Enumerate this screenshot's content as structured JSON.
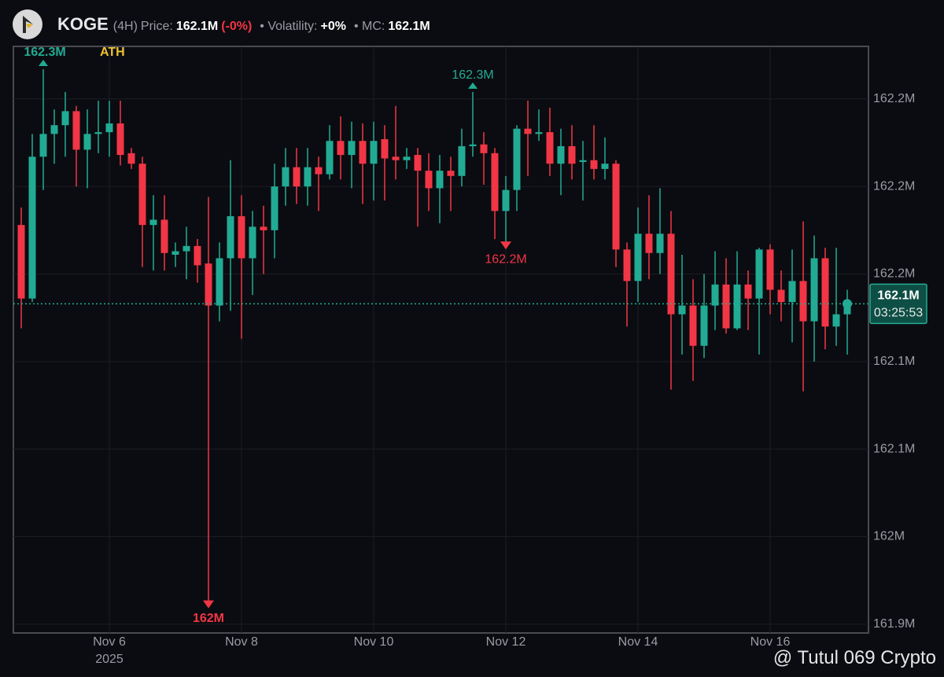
{
  "header": {
    "symbol": "KOGE",
    "interval": "(4H)",
    "price_label": "Price:",
    "price": "162.1M",
    "change": "(-0%)",
    "volatility_label": "• Volatility:",
    "volatility": "+0%",
    "mc_label": "• MC:",
    "mc": "162.1M"
  },
  "chart_data": {
    "type": "candlestick",
    "categories": [
      null,
      null,
      null,
      null,
      null,
      null,
      null,
      null,
      "Nov 6",
      null,
      null,
      null,
      null,
      null,
      null,
      null,
      null,
      null,
      null,
      null,
      "Nov 8",
      null,
      null,
      null,
      null,
      null,
      null,
      null,
      null,
      null,
      null,
      null,
      "Nov 10",
      null,
      null,
      null,
      null,
      null,
      null,
      null,
      null,
      null,
      null,
      null,
      "Nov 12",
      null,
      null,
      null,
      null,
      null,
      null,
      null,
      null,
      null,
      null,
      null,
      "Nov 14",
      null,
      null,
      null,
      null,
      null,
      null,
      null,
      null,
      null,
      null,
      null,
      "Nov 16",
      null,
      null,
      null,
      null,
      null,
      null,
      null
    ],
    "year_label": "2025",
    "open": [
      162.178,
      162.136,
      162.217,
      162.23,
      162.235,
      162.243,
      162.221,
      162.23,
      162.231,
      162.236,
      162.219,
      162.213,
      162.178,
      162.181,
      162.161,
      162.163,
      162.166,
      162.156,
      162.132,
      162.159,
      162.183,
      162.159,
      162.177,
      162.175,
      162.2,
      162.211,
      162.2,
      162.211,
      162.207,
      162.226,
      162.218,
      162.226,
      162.213,
      162.227,
      162.217,
      162.215,
      162.218,
      162.209,
      162.199,
      162.209,
      162.206,
      162.223,
      162.224,
      162.219,
      162.186,
      162.198,
      162.233,
      162.23,
      162.231,
      162.213,
      162.223,
      162.214,
      162.215,
      162.21,
      162.213,
      162.164,
      162.146,
      162.173,
      162.162,
      162.173,
      162.127,
      162.132,
      162.109,
      162.132,
      162.144,
      162.119,
      162.144,
      162.136,
      162.164,
      162.141,
      162.134,
      162.146,
      162.123,
      162.159,
      162.12,
      162.127
    ],
    "high": [
      162.188,
      162.23,
      162.267,
      162.244,
      162.254,
      162.246,
      162.244,
      162.249,
      162.249,
      162.249,
      162.222,
      162.217,
      162.195,
      162.195,
      162.168,
      162.177,
      162.17,
      162.194,
      162.168,
      162.215,
      162.195,
      162.186,
      162.189,
      162.213,
      162.222,
      162.222,
      162.222,
      162.217,
      162.235,
      162.24,
      162.237,
      162.236,
      162.237,
      162.235,
      162.246,
      162.222,
      162.222,
      162.219,
      162.218,
      162.217,
      162.233,
      162.254,
      162.231,
      162.222,
      162.206,
      162.235,
      162.249,
      162.244,
      162.245,
      162.233,
      162.235,
      162.226,
      162.235,
      162.228,
      162.215,
      162.168,
      162.188,
      162.195,
      162.199,
      162.186,
      162.161,
      162.147,
      162.15,
      162.163,
      162.159,
      162.163,
      162.152,
      162.165,
      162.167,
      162.152,
      162.164,
      162.18,
      162.172,
      162.165,
      162.165,
      162.141
    ],
    "low": [
      162.119,
      162.134,
      162.198,
      162.213,
      162.217,
      162.2,
      162.199,
      162.219,
      162.217,
      162.212,
      162.21,
      162.154,
      162.152,
      162.152,
      162.154,
      162.147,
      162.145,
      161.96,
      162.123,
      162.129,
      162.113,
      162.138,
      162.15,
      162.159,
      162.189,
      162.19,
      162.189,
      162.186,
      162.204,
      162.204,
      162.199,
      162.19,
      162.192,
      162.192,
      162.204,
      162.21,
      162.177,
      162.186,
      162.179,
      162.186,
      162.2,
      162.217,
      162.201,
      162.17,
      162.165,
      162.186,
      162.206,
      162.226,
      162.206,
      162.195,
      162.204,
      162.192,
      162.204,
      162.204,
      162.154,
      162.12,
      162.134,
      162.147,
      162.15,
      162.084,
      162.104,
      162.089,
      162.102,
      162.118,
      162.116,
      162.118,
      162.118,
      162.104,
      162.127,
      162.123,
      162.111,
      162.083,
      162.1,
      162.107,
      162.109,
      162.104
    ],
    "close": [
      162.136,
      162.217,
      162.23,
      162.235,
      162.243,
      162.221,
      162.23,
      162.231,
      162.236,
      162.218,
      162.213,
      162.178,
      162.181,
      162.162,
      162.163,
      162.166,
      162.155,
      162.132,
      162.159,
      162.183,
      162.159,
      162.177,
      162.175,
      162.2,
      162.211,
      162.2,
      162.211,
      162.207,
      162.226,
      162.218,
      162.226,
      162.213,
      162.226,
      162.216,
      162.215,
      162.217,
      162.209,
      162.199,
      162.209,
      162.206,
      162.223,
      162.224,
      162.219,
      162.186,
      162.198,
      162.233,
      162.23,
      162.231,
      162.213,
      162.223,
      162.213,
      162.215,
      162.21,
      162.213,
      162.164,
      162.146,
      162.173,
      162.162,
      162.173,
      162.127,
      162.132,
      162.109,
      162.132,
      162.144,
      162.119,
      162.144,
      162.136,
      162.164,
      162.141,
      162.134,
      162.146,
      162.123,
      162.159,
      162.12,
      162.127,
      162.134
    ],
    "high_labels": [
      null,
      null,
      "162.3M",
      null,
      null,
      null,
      null,
      null,
      null,
      null,
      null,
      null,
      null,
      null,
      null,
      null,
      null,
      null,
      null,
      null,
      null,
      null,
      null,
      null,
      null,
      null,
      null,
      null,
      null,
      null,
      null,
      null,
      null,
      null,
      null,
      null,
      null,
      null,
      null,
      null,
      null,
      "162.3M",
      null,
      null,
      null,
      null,
      null,
      null,
      null,
      null,
      null,
      null,
      null,
      null,
      null,
      null,
      null,
      null,
      null,
      null,
      null,
      null,
      null,
      null,
      null,
      null,
      null,
      null,
      null,
      null,
      null,
      null,
      null,
      null,
      null,
      null
    ],
    "low_labels": [
      null,
      null,
      null,
      null,
      null,
      null,
      null,
      null,
      null,
      null,
      null,
      null,
      null,
      null,
      null,
      null,
      null,
      "162M",
      null,
      null,
      null,
      null,
      null,
      null,
      null,
      null,
      null,
      null,
      null,
      null,
      null,
      null,
      null,
      null,
      null,
      null,
      null,
      null,
      null,
      null,
      null,
      null,
      null,
      null,
      "162.2M",
      null,
      null,
      null,
      null,
      null,
      null,
      null,
      null,
      null,
      null,
      null,
      null,
      null,
      null,
      null,
      null,
      null,
      null,
      null,
      null,
      null,
      null,
      null,
      null,
      null,
      null,
      null,
      null,
      null,
      null,
      null
    ],
    "ath_label": "ATH",
    "up_color": "#22ab94",
    "down_color": "#f23645",
    "ylim": [
      161.945,
      162.28
    ],
    "yticks": [
      {
        "value": 161.95,
        "label": "161.9M"
      },
      {
        "value": 162.0,
        "label": "162M"
      },
      {
        "value": 162.05,
        "label": "162.1M"
      },
      {
        "value": 162.1,
        "label": "162.1M"
      },
      {
        "value": 162.15,
        "label": "162.2M"
      },
      {
        "value": 162.2,
        "label": "162.2M"
      },
      {
        "value": 162.25,
        "label": "162.2M"
      }
    ],
    "grid": true,
    "last_price": 162.133,
    "last_price_label": "162.1M",
    "countdown": "03:25:53"
  },
  "watermark": "@ Tutul 069 Crypto"
}
